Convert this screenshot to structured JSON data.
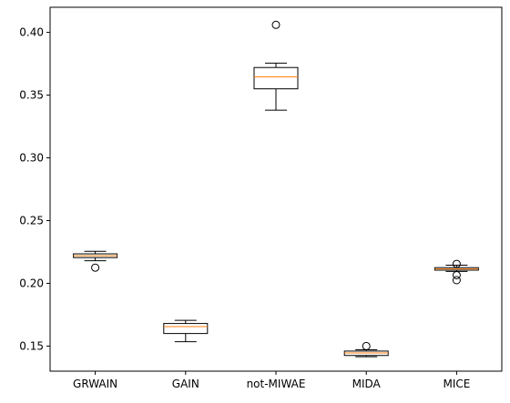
{
  "chart_data": {
    "type": "box",
    "title": "",
    "xlabel": "",
    "ylabel": "",
    "ylim": [
      0.13,
      0.42
    ],
    "yticks": [
      0.15,
      0.2,
      0.25,
      0.3,
      0.35,
      0.4
    ],
    "ytick_labels": [
      "0.15",
      "0.20",
      "0.25",
      "0.30",
      "0.35",
      "0.40"
    ],
    "grid": false,
    "colors": {
      "box": "#000000",
      "median": "#ff7f0e",
      "flier": "#000000"
    },
    "categories": [
      "GRWAIN",
      "GAIN",
      "not-MIWAE",
      "MIDA",
      "MICE"
    ],
    "boxes": [
      {
        "label": "GRWAIN",
        "whisker_low": 0.218,
        "q1": 0.2205,
        "median": 0.222,
        "q3": 0.2235,
        "whisker_high": 0.2255,
        "fliers": [
          0.2125
        ]
      },
      {
        "label": "GAIN",
        "whisker_low": 0.1535,
        "q1": 0.16,
        "median": 0.1655,
        "q3": 0.168,
        "whisker_high": 0.1705,
        "fliers": []
      },
      {
        "label": "not-MIWAE",
        "whisker_low": 0.338,
        "q1": 0.355,
        "median": 0.3645,
        "q3": 0.372,
        "whisker_high": 0.3755,
        "fliers": [
          0.406
        ]
      },
      {
        "label": "MIDA",
        "whisker_low": 0.1415,
        "q1": 0.1425,
        "median": 0.1445,
        "q3": 0.146,
        "whisker_high": 0.147,
        "fliers": [
          0.15
        ]
      },
      {
        "label": "MICE",
        "whisker_low": 0.2095,
        "q1": 0.2105,
        "median": 0.2115,
        "q3": 0.2125,
        "whisker_high": 0.2145,
        "fliers": [
          0.2155,
          0.2065,
          0.2025
        ]
      }
    ]
  }
}
